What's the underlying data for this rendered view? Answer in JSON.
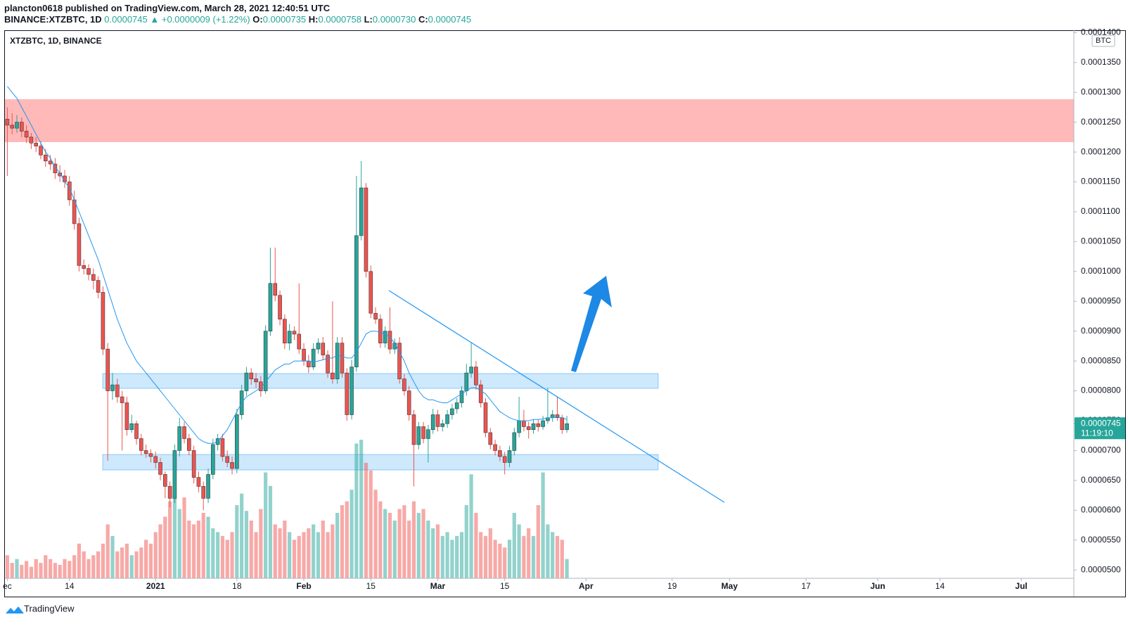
{
  "header": {
    "byline": "plancton0618 published on TradingView.com, March 28, 2021 12:40:51 UTC",
    "symbol": "BINANCE:XTZBTC, 1D",
    "last": "0.0000745",
    "change": "▲ +0.0000009 (+1.22%)",
    "open_label": "O:",
    "open": "0.0000735",
    "high_label": "H:",
    "high": "0.0000758",
    "low_label": "L:",
    "low": "0.0000730",
    "close_label": "C:",
    "close": "0.0000745"
  },
  "brand": "TradingView",
  "chart_data": {
    "type": "candlestick",
    "title": "XTZBTC, 1D, BINANCE",
    "currency": "BTC",
    "up_color": "#26a69a",
    "down_color": "#ef5350",
    "xlim": [
      -0.5,
      223
    ],
    "ylim": [
      4.86e-05,
      0.0001404
    ],
    "xticks": [
      {
        "value": 0,
        "label": "ec"
      },
      {
        "value": 13,
        "label": "14"
      },
      {
        "value": 31,
        "label": "2021"
      },
      {
        "value": 48,
        "label": "18"
      },
      {
        "value": 62,
        "label": "Feb"
      },
      {
        "value": 76,
        "label": "15"
      },
      {
        "value": 90,
        "label": "Mar"
      },
      {
        "value": 104,
        "label": "15"
      },
      {
        "value": 121,
        "label": "Apr"
      },
      {
        "value": 139,
        "label": "19"
      },
      {
        "value": 151,
        "label": "May"
      },
      {
        "value": 167,
        "label": "17"
      },
      {
        "value": 182,
        "label": "Jun"
      },
      {
        "value": 195,
        "label": "14"
      },
      {
        "value": 212,
        "label": "Jul"
      }
    ],
    "yticks": [
      {
        "value": 5e-05,
        "label": "0.0000500"
      },
      {
        "value": 5.5e-05,
        "label": "0.0000550"
      },
      {
        "value": 6e-05,
        "label": "0.0000600"
      },
      {
        "value": 6.5e-05,
        "label": "0.0000650"
      },
      {
        "value": 7e-05,
        "label": "0.0000700"
      },
      {
        "value": 7.5e-05,
        "label": "0.0000750"
      },
      {
        "value": 8e-05,
        "label": "0.0000800"
      },
      {
        "value": 8.5e-05,
        "label": "0.0000850"
      },
      {
        "value": 9e-05,
        "label": "0.0000900"
      },
      {
        "value": 9.5e-05,
        "label": "0.0000950"
      },
      {
        "value": 0.0001,
        "label": "0.0001000"
      },
      {
        "value": 0.000105,
        "label": "0.0001050"
      },
      {
        "value": 0.00011,
        "label": "0.0001100"
      },
      {
        "value": 0.000115,
        "label": "0.0001150"
      },
      {
        "value": 0.00012,
        "label": "0.0001200"
      },
      {
        "value": 0.000125,
        "label": "0.0001250"
      },
      {
        "value": 0.00013,
        "label": "0.0001300"
      },
      {
        "value": 0.000135,
        "label": "0.0001350"
      },
      {
        "value": 0.00014,
        "label": "0.0001400"
      }
    ],
    "ohlc": [
      [
        0.0001255,
        0.0001275,
        0.000116,
        0.0001245
      ],
      [
        0.0001245,
        0.0001265,
        0.000123,
        0.000124
      ],
      [
        0.000124,
        0.0001262,
        0.0001232,
        0.000125
      ],
      [
        0.000125,
        0.0001258,
        0.0001225,
        0.0001235
      ],
      [
        0.0001235,
        0.0001245,
        0.0001215,
        0.0001225
      ],
      [
        0.0001225,
        0.0001232,
        0.0001205,
        0.0001215
      ],
      [
        0.0001215,
        0.0001225,
        0.00012,
        0.000121
      ],
      [
        0.000121,
        0.0001218,
        0.0001188,
        0.0001195
      ],
      [
        0.0001195,
        0.0001205,
        0.0001175,
        0.0001185
      ],
      [
        0.0001185,
        0.0001195,
        0.000117,
        0.000118
      ],
      [
        0.000118,
        0.000119,
        0.0001155,
        0.0001165
      ],
      [
        0.0001165,
        0.0001178,
        0.000115,
        0.000116
      ],
      [
        0.000116,
        0.000117,
        0.000114,
        0.000115
      ],
      [
        0.000115,
        0.000116,
        0.000111,
        0.000112
      ],
      [
        0.000112,
        0.0001135,
        0.000107,
        0.000108
      ],
      [
        0.000108,
        0.000109,
        0.0001,
        0.000101
      ],
      [
        0.000101,
        0.000102,
        9.95e-05,
        0.0001005
      ],
      [
        0.0001005,
        0.0001012,
        9.85e-05,
        9.95e-05
      ],
      [
        9.95e-05,
        0.0001005,
        9.7e-05,
        9.85e-05
      ],
      [
        9.85e-05,
        9.92e-05,
        9.55e-05,
        9.65e-05
      ],
      [
        9.65e-05,
        9.75e-05,
        8.6e-05,
        8.7e-05
      ],
      [
        8.7e-05,
        8.8e-05,
        6.83e-05,
        8e-05
      ],
      [
        8e-05,
        8.3e-05,
        7.85e-05,
        8.1e-05
      ],
      [
        8.1e-05,
        8.2e-05,
        7.8e-05,
        7.9e-05
      ],
      [
        7.9e-05,
        8e-05,
        7e-05,
        7.8e-05
      ],
      [
        7.8e-05,
        7.9e-05,
        7.25e-05,
        7.35e-05
      ],
      [
        7.35e-05,
        7.6e-05,
        7.3e-05,
        7.45e-05
      ],
      [
        7.45e-05,
        7.5e-05,
        7.1e-05,
        7.2e-05
      ],
      [
        7.2e-05,
        7.28e-05,
        6.92e-05,
        7e-05
      ],
      [
        7e-05,
        7.1e-05,
        6.88e-05,
        6.95e-05
      ],
      [
        6.95e-05,
        7.02e-05,
        6.8e-05,
        6.9e-05
      ],
      [
        6.9e-05,
        6.98e-05,
        6.7e-05,
        6.8e-05
      ],
      [
        6.8e-05,
        6.88e-05,
        6.5e-05,
        6.6e-05
      ],
      [
        6.6e-05,
        6.65e-05,
        6.2e-05,
        6.4e-05
      ],
      [
        6.4e-05,
        6.48e-05,
        6.05e-05,
        6.2e-05
      ],
      [
        6.2e-05,
        7.1e-05,
        6.12e-05,
        7e-05
      ],
      [
        7e-05,
        7.55e-05,
        6.9e-05,
        7.4e-05
      ],
      [
        7.4e-05,
        7.48e-05,
        7.12e-05,
        7.2e-05
      ],
      [
        7.2e-05,
        7.28e-05,
        6.92e-05,
        7e-05
      ],
      [
        7e-05,
        7.08e-05,
        6.45e-05,
        6.55e-05
      ],
      [
        6.55e-05,
        6.65e-05,
        6.3e-05,
        6.4e-05
      ],
      [
        6.4e-05,
        6.48e-05,
        6e-05,
        6.2e-05
      ],
      [
        6.2e-05,
        6.7e-05,
        6.12e-05,
        6.6e-05
      ],
      [
        6.6e-05,
        7.2e-05,
        6.52e-05,
        7.1e-05
      ],
      [
        7.1e-05,
        7.28e-05,
        7e-05,
        7.2e-05
      ],
      [
        7.2e-05,
        7.28e-05,
        6.82e-05,
        6.9e-05
      ],
      [
        6.9e-05,
        7e-05,
        6.72e-05,
        6.8e-05
      ],
      [
        6.8e-05,
        6.9e-05,
        6.6e-05,
        6.7e-05
      ],
      [
        6.7e-05,
        7.7e-05,
        6.62e-05,
        7.6e-05
      ],
      [
        7.6e-05,
        8.1e-05,
        7.52e-05,
        8e-05
      ],
      [
        8e-05,
        8.4e-05,
        7.92e-05,
        8.3e-05
      ],
      [
        8.3e-05,
        8.38e-05,
        8.1e-05,
        8.2e-05
      ],
      [
        8.2e-05,
        8.3e-05,
        8.05e-05,
        8.15e-05
      ],
      [
        8.15e-05,
        8.25e-05,
        7.9e-05,
        8e-05
      ],
      [
        8e-05,
        9.1e-05,
        7.95e-05,
        9e-05
      ],
      [
        9e-05,
        0.000104,
        8.92e-05,
        9.8e-05
      ],
      [
        9.8e-05,
        0.000104,
        9.5e-05,
        9.6e-05
      ],
      [
        9.6e-05,
        9.68e-05,
        9.1e-05,
        9.2e-05
      ],
      [
        9.2e-05,
        9.28e-05,
        8.7e-05,
        8.8e-05
      ],
      [
        8.8e-05,
        9.12e-05,
        8.68e-05,
        9e-05
      ],
      [
        9e-05,
        9.08e-05,
        8.85e-05,
        8.95e-05
      ],
      [
        8.95e-05,
        9.8e-05,
        8.62e-05,
        8.7e-05
      ],
      [
        8.7e-05,
        8.8e-05,
        8.42e-05,
        8.5e-05
      ],
      [
        8.5e-05,
        8.6e-05,
        8.3e-05,
        8.4e-05
      ],
      [
        8.4e-05,
        8.8e-05,
        8.35e-05,
        8.7e-05
      ],
      [
        8.7e-05,
        8.88e-05,
        8.62e-05,
        8.8e-05
      ],
      [
        8.8e-05,
        8.9e-05,
        8.52e-05,
        8.6e-05
      ],
      [
        8.6e-05,
        8.68e-05,
        8.22e-05,
        8.3e-05
      ],
      [
        8.3e-05,
        9.5e-05,
        8.12e-05,
        8.2e-05
      ],
      [
        8.2e-05,
        8.9e-05,
        8.12e-05,
        8.8e-05
      ],
      [
        8.8e-05,
        8.9e-05,
        8.22e-05,
        8.3e-05
      ],
      [
        8.3e-05,
        8.38e-05,
        7.5e-05,
        7.6e-05
      ],
      [
        7.6e-05,
        8.52e-05,
        7.52e-05,
        8.4e-05
      ],
      [
        8.4e-05,
        0.000116,
        8.32e-05,
        0.000106
      ],
      [
        0.000106,
        0.0001185,
        0.0001052,
        0.000114
      ],
      [
        0.000114,
        0.0001148,
        9.9e-05,
        0.0001
      ],
      [
        0.0001,
        0.000101,
        9.22e-05,
        9.3e-05
      ],
      [
        9.3e-05,
        9.4e-05,
        9.12e-05,
        9.2e-05
      ],
      [
        9.2e-05,
        9.28e-05,
        8.72e-05,
        8.8e-05
      ],
      [
        8.8e-05,
        9.08e-05,
        8.72e-05,
        9e-05
      ],
      [
        9e-05,
        9.4e-05,
        8.62e-05,
        8.7e-05
      ],
      [
        8.7e-05,
        8.88e-05,
        8.62e-05,
        8.8e-05
      ],
      [
        8.8e-05,
        8.9e-05,
        8.12e-05,
        8.2e-05
      ],
      [
        8.2e-05,
        8.28e-05,
        7.92e-05,
        8e-05
      ],
      [
        8e-05,
        8.08e-05,
        7.5e-05,
        7.6e-05
      ],
      [
        7.6e-05,
        7.68e-05,
        6.4e-05,
        7.1e-05
      ],
      [
        7.1e-05,
        7.48e-05,
        7.02e-05,
        7.4e-05
      ],
      [
        7.4e-05,
        7.48e-05,
        7.12e-05,
        7.2e-05
      ],
      [
        7.2e-05,
        7.43e-05,
        6.8e-05,
        7.35e-05
      ],
      [
        7.35e-05,
        7.7e-05,
        7.28e-05,
        7.6e-05
      ],
      [
        7.6e-05,
        7.68e-05,
        7.32e-05,
        7.4e-05
      ],
      [
        7.4e-05,
        7.52e-05,
        7.32e-05,
        7.45e-05
      ],
      [
        7.45e-05,
        7.68e-05,
        7.38e-05,
        7.6e-05
      ],
      [
        7.6e-05,
        7.78e-05,
        7.52e-05,
        7.7e-05
      ],
      [
        7.7e-05,
        7.88e-05,
        7.62e-05,
        7.8e-05
      ],
      [
        7.8e-05,
        8.08e-05,
        7.72e-05,
        8e-05
      ],
      [
        8e-05,
        8.45e-05,
        7.92e-05,
        8.3e-05
      ],
      [
        8.3e-05,
        8.8e-05,
        8.22e-05,
        8.4e-05
      ],
      [
        8.4e-05,
        8.5e-05,
        8.02e-05,
        8.1e-05
      ],
      [
        8.1e-05,
        8.18e-05,
        7.72e-05,
        7.8e-05
      ],
      [
        7.8e-05,
        7.88e-05,
        7.22e-05,
        7.3e-05
      ],
      [
        7.3e-05,
        7.38e-05,
        7.02e-05,
        7.1e-05
      ],
      [
        7.1e-05,
        7.18e-05,
        6.92e-05,
        7e-05
      ],
      [
        7e-05,
        7.08e-05,
        6.82e-05,
        6.9e-05
      ],
      [
        6.9e-05,
        6.98e-05,
        6.6e-05,
        6.8e-05
      ],
      [
        6.8e-05,
        7.08e-05,
        6.72e-05,
        7e-05
      ],
      [
        7e-05,
        7.38e-05,
        6.92e-05,
        7.3e-05
      ],
      [
        7.3e-05,
        7.9e-05,
        7.22e-05,
        7.5e-05
      ],
      [
        7.5e-05,
        7.68e-05,
        7.32e-05,
        7.4e-05
      ],
      [
        7.4e-05,
        7.48e-05,
        7.2e-05,
        7.35e-05
      ],
      [
        7.35e-05,
        7.52e-05,
        7.28e-05,
        7.45e-05
      ],
      [
        7.45e-05,
        7.52e-05,
        7.32e-05,
        7.4e-05
      ],
      [
        7.4e-05,
        7.58e-05,
        7.35e-05,
        7.5e-05
      ],
      [
        7.5e-05,
        8.05e-05,
        7.45e-05,
        7.55e-05
      ],
      [
        7.55e-05,
        7.68e-05,
        7.48e-05,
        7.6e-05
      ],
      [
        7.6e-05,
        7.9e-05,
        7.5e-05,
        7.55e-05
      ],
      [
        7.55e-05,
        7.6e-05,
        7.28e-05,
        7.35e-05
      ],
      [
        7.35e-05,
        7.58e-05,
        7.3e-05,
        7.45e-05
      ]
    ],
    "ma": {
      "color": "#2196f3",
      "values": [
        0.000131,
        0.00013,
        0.000129,
        0.0001275,
        0.000126,
        0.0001245,
        0.000123,
        0.0001215,
        0.00012,
        0.000119,
        0.0001175,
        0.0001165,
        0.000115,
        0.000114,
        0.000112,
        0.00011,
        0.000108,
        0.000106,
        0.000104,
        0.000102,
        9.95e-05,
        9.7e-05,
        9.45e-05,
        9.2e-05,
        9e-05,
        8.8e-05,
        8.65e-05,
        8.5e-05,
        8.4e-05,
        8.3e-05,
        8.2e-05,
        8.1e-05,
        8e-05,
        7.9e-05,
        7.8e-05,
        7.7e-05,
        7.6e-05,
        7.5e-05,
        7.4e-05,
        7.3e-05,
        7.2e-05,
        7.15e-05,
        7.12e-05,
        7.12e-05,
        7.15e-05,
        7.25e-05,
        7.35e-05,
        7.5e-05,
        7.65e-05,
        7.8e-05,
        7.9e-05,
        7.95e-05,
        8e-05,
        8.05e-05,
        8.15e-05,
        8.25e-05,
        8.35e-05,
        8.4e-05,
        8.45e-05,
        8.45e-05,
        8.5e-05,
        8.5e-05,
        8.5e-05,
        8.5e-05,
        8.48e-05,
        8.5e-05,
        8.52e-05,
        8.55e-05,
        8.55e-05,
        8.6e-05,
        8.58e-05,
        8.55e-05,
        8.55e-05,
        8.65e-05,
        8.8e-05,
        8.95e-05,
        9e-05,
        9e-05,
        8.98e-05,
        8.95e-05,
        8.9e-05,
        8.8e-05,
        8.65e-05,
        8.5e-05,
        8.3e-05,
        8.15e-05,
        8e-05,
        7.9e-05,
        7.85e-05,
        7.85e-05,
        7.82e-05,
        7.8e-05,
        7.8e-05,
        7.85e-05,
        7.9e-05,
        7.95e-05,
        8e-05,
        8.05e-05,
        8.05e-05,
        8e-05,
        7.95e-05,
        7.85e-05,
        7.75e-05,
        7.65e-05,
        7.6e-05,
        7.55e-05,
        7.52e-05,
        7.5e-05,
        7.5e-05,
        7.5e-05,
        7.52e-05,
        7.52e-05,
        7.53e-05,
        7.55e-05,
        7.55e-05,
        7.56e-05,
        7.55e-05,
        7.52e-05
      ]
    },
    "volume": {
      "values": [
        12,
        8,
        10,
        7,
        9,
        6,
        10,
        8,
        12,
        10,
        8,
        7,
        10,
        9,
        12,
        18,
        14,
        10,
        12,
        14,
        18,
        28,
        22,
        14,
        16,
        18,
        12,
        14,
        16,
        20,
        18,
        24,
        28,
        32,
        40,
        45,
        36,
        42,
        30,
        28,
        30,
        34,
        32,
        26,
        24,
        22,
        20,
        24,
        38,
        44,
        35,
        30,
        24,
        36,
        55,
        48,
        28,
        26,
        30,
        24,
        20,
        22,
        24,
        26,
        28,
        24,
        30,
        24,
        28,
        34,
        38,
        40,
        46,
        70,
        72,
        60,
        56,
        46,
        40,
        36,
        34,
        30,
        36,
        38,
        30,
        40,
        34,
        36,
        30,
        26,
        28,
        22,
        24,
        20,
        22,
        24,
        38,
        54,
        34,
        24,
        22,
        26,
        20,
        18,
        16,
        20,
        34,
        28,
        22,
        26,
        22,
        38,
        55,
        28,
        24,
        22,
        20,
        10
      ]
    },
    "price_tag": {
      "price": "0.0000745",
      "countdown": "11:19:10"
    }
  }
}
